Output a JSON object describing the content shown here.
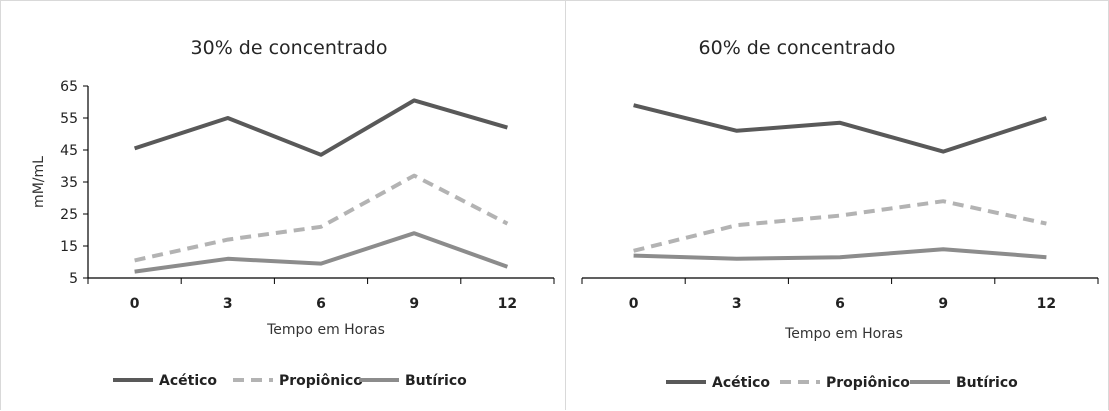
{
  "chart_data": [
    {
      "type": "line",
      "title": "30% de concentrado",
      "xlabel": "Tempo em Horas",
      "ylabel": "mM/mL",
      "categories": [
        "0",
        "3",
        "6",
        "9",
        "12"
      ],
      "ylim": [
        5,
        65
      ],
      "yticks": [
        5,
        15,
        25,
        35,
        45,
        55,
        65
      ],
      "show_y_ticks": true,
      "legend": "bottom",
      "grid": false,
      "series": [
        {
          "name": "Acético",
          "values": [
            45.5,
            55,
            43.5,
            60.5,
            52
          ],
          "color": "#595959",
          "style": "solid"
        },
        {
          "name": "Propiônico",
          "values": [
            10.5,
            17,
            21,
            37,
            22
          ],
          "color": "#b3b3b3",
          "style": "dashed"
        },
        {
          "name": "Butírico",
          "values": [
            7,
            11,
            9.5,
            19,
            8.5
          ],
          "color": "#8c8c8c",
          "style": "solid"
        }
      ]
    },
    {
      "type": "line",
      "title": "60% de concentrado",
      "xlabel": "Tempo em Horas",
      "ylabel": "",
      "categories": [
        "0",
        "3",
        "6",
        "9",
        "12"
      ],
      "ylim": [
        5,
        65
      ],
      "yticks": [],
      "show_y_ticks": false,
      "legend": "bottom",
      "grid": false,
      "series": [
        {
          "name": "Acético",
          "values": [
            59,
            51,
            53.5,
            44.5,
            55
          ],
          "color": "#595959",
          "style": "solid"
        },
        {
          "name": "Propiônico",
          "values": [
            13.5,
            21.5,
            24.5,
            29,
            22
          ],
          "color": "#b3b3b3",
          "style": "dashed"
        },
        {
          "name": "Butírico",
          "values": [
            12,
            11,
            11.5,
            14,
            11.5
          ],
          "color": "#8c8c8c",
          "style": "solid"
        }
      ]
    }
  ]
}
